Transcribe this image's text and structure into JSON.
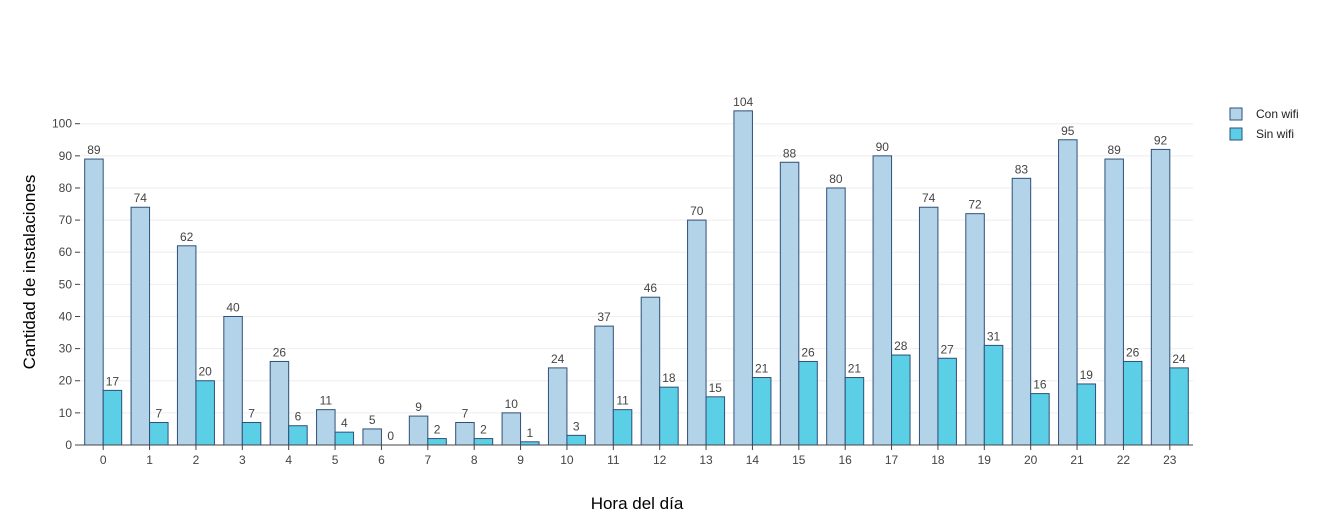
{
  "chart_data": {
    "type": "bar",
    "title": "",
    "xlabel": "Hora del día",
    "ylabel": "Cantidad de instalaciones",
    "categories": [
      "0",
      "1",
      "2",
      "3",
      "4",
      "5",
      "6",
      "7",
      "8",
      "9",
      "10",
      "11",
      "12",
      "13",
      "14",
      "15",
      "16",
      "17",
      "18",
      "19",
      "20",
      "21",
      "22",
      "23"
    ],
    "series": [
      {
        "name": "Con wifi",
        "color": "#b3d4e8",
        "values": [
          89,
          74,
          62,
          40,
          26,
          11,
          5,
          9,
          7,
          10,
          24,
          37,
          46,
          70,
          104,
          88,
          80,
          90,
          74,
          72,
          83,
          95,
          89,
          92
        ]
      },
      {
        "name": "Sin wifi",
        "color": "#5bcfe6",
        "values": [
          17,
          7,
          20,
          7,
          6,
          4,
          0,
          2,
          2,
          1,
          3,
          11,
          18,
          15,
          21,
          26,
          21,
          28,
          27,
          31,
          16,
          19,
          26,
          24
        ]
      }
    ],
    "ylim": [
      0,
      108
    ],
    "yticks": [
      0,
      10,
      20,
      30,
      40,
      50,
      60,
      70,
      80,
      90,
      100
    ],
    "grid": true,
    "legend_position": "top-right",
    "bar_outline_color": "#2f4f7a"
  }
}
